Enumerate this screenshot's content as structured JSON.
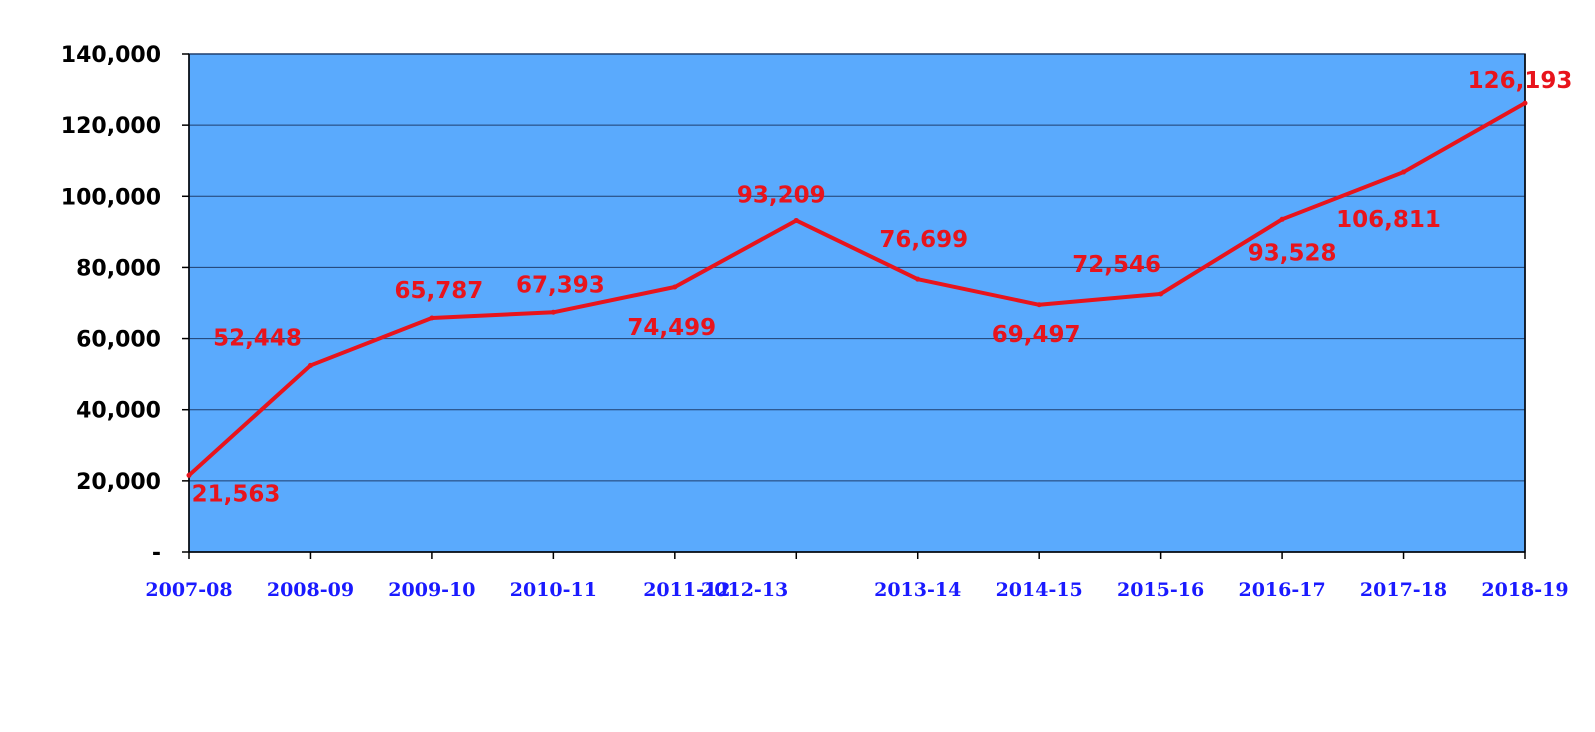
{
  "chart_data": {
    "type": "line",
    "title": "",
    "xlabel": "",
    "ylabel": "",
    "categories": [
      "2007-08",
      "2008-09",
      "2009-10",
      "2010-11",
      "2011-12",
      "2012-13",
      "2013-14",
      "2014-15",
      "2015-16",
      "2016-17",
      "2017-18",
      "2018-19"
    ],
    "series": [
      {
        "values": [
          21563,
          52448,
          65787,
          67393,
          74499,
          93209,
          76699,
          69497,
          72546,
          93528,
          106811,
          126193
        ],
        "data_labels": [
          "21,563",
          "52,448",
          "65,787",
          "67,393",
          "74,499",
          "93,209",
          "76,699",
          "69,497",
          "72,546",
          "93,528",
          "106,811",
          "126,193"
        ],
        "color": "#e8141c"
      }
    ],
    "ylim": [
      0,
      140000
    ],
    "yticks": [
      0,
      20000,
      40000,
      60000,
      80000,
      100000,
      120000,
      140000
    ],
    "ytick_labels": [
      "-",
      "20,000",
      "40,000",
      "60,000",
      "80,000",
      "100,000",
      "120,000",
      "140,000"
    ],
    "grid": true,
    "legend": "none",
    "colors": {
      "plot_background": "#5aaafd",
      "gridline": "#1f3f6e",
      "line": "#e8141c",
      "data_label": "#e8141c",
      "x_tick_label": "#1a1aff",
      "y_tick_label": "#000000"
    }
  }
}
